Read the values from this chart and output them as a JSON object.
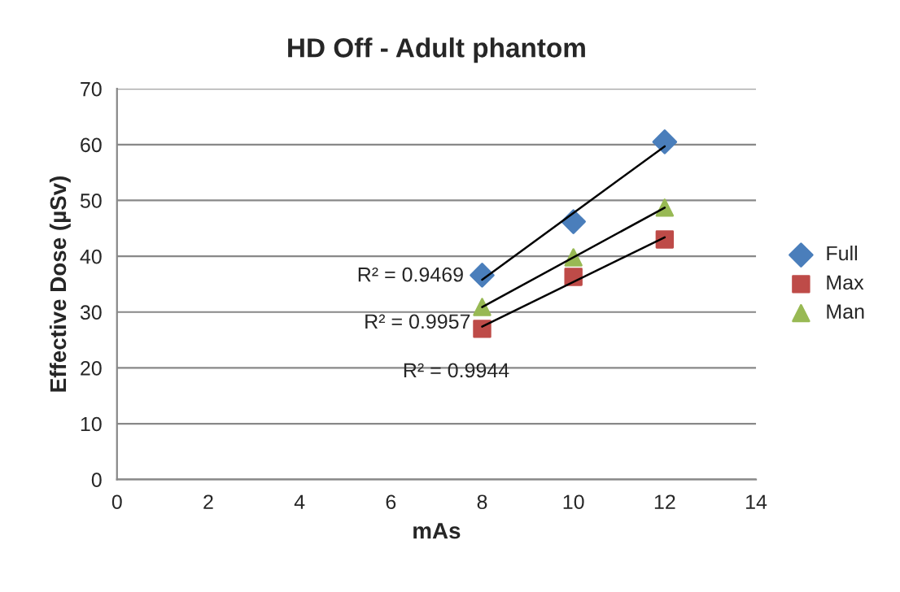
{
  "chart_data": {
    "type": "scatter",
    "title": "HD Off - Adult phantom",
    "xlabel": "mAs",
    "ylabel": "Effective Dose (µSv)",
    "xlim": [
      0,
      14
    ],
    "xticks": [
      0,
      2,
      4,
      6,
      8,
      10,
      12,
      14
    ],
    "ylim": [
      0,
      70
    ],
    "yticks": [
      0,
      10,
      20,
      30,
      40,
      50,
      60,
      70
    ],
    "grid": "y",
    "legend": "right",
    "series": [
      {
        "name": "Full",
        "color": "#4a7ebb",
        "marker": "diamond",
        "x": [
          8,
          10,
          12
        ],
        "values": [
          36.6,
          46.2,
          60.5
        ]
      },
      {
        "name": "Max",
        "color": "#be4b48",
        "marker": "square",
        "x": [
          8,
          10,
          12
        ],
        "values": [
          27,
          36.3,
          43
        ]
      },
      {
        "name": "Man",
        "color": "#98b954",
        "marker": "triangle",
        "x": [
          8,
          10,
          12
        ],
        "values": [
          30.9,
          39.8,
          48.7
        ]
      },
      {
        "type": "line",
        "color": "#000000",
        "x": [
          8,
          12
        ],
        "values": [
          35.8,
          59.7
        ]
      },
      {
        "type": "line",
        "color": "#000000",
        "x": [
          8,
          12
        ],
        "values": [
          27.4,
          43.4
        ]
      },
      {
        "type": "line",
        "color": "#000000",
        "x": [
          8,
          12
        ],
        "values": [
          30.9,
          48.7
        ]
      }
    ],
    "annotations": [
      "R² = 0.9469",
      "R² = 0.9957",
      "R² = 0.9944"
    ]
  }
}
